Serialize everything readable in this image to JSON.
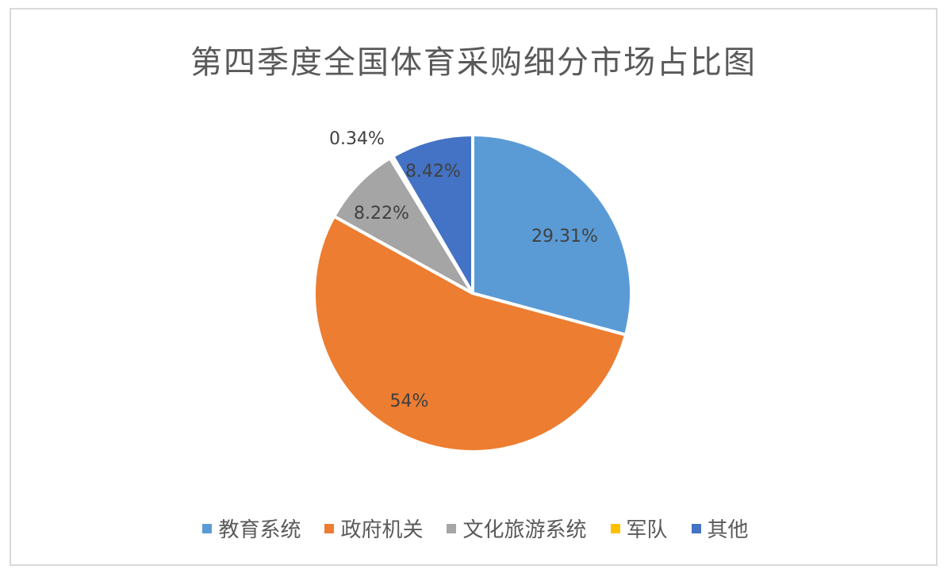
{
  "chart_data": {
    "type": "pie",
    "title": "第四季度全国体育采购细分市场占比图",
    "slices": [
      {
        "name": "教育系统",
        "value": 29.31,
        "label": "29.31%",
        "color": "#5b9bd5"
      },
      {
        "name": "政府机关",
        "value": 54,
        "label": "54%",
        "color": "#ed7d31"
      },
      {
        "name": "文化旅游系统",
        "value": 8.22,
        "label": "8.22%",
        "color": "#a5a5a5"
      },
      {
        "name": "军队",
        "value": 0.34,
        "label": "0.34%",
        "color": "#ffc000"
      },
      {
        "name": "其他",
        "value": 8.42,
        "label": "8.42%",
        "color": "#4472c4"
      }
    ],
    "legend_position": "bottom"
  }
}
